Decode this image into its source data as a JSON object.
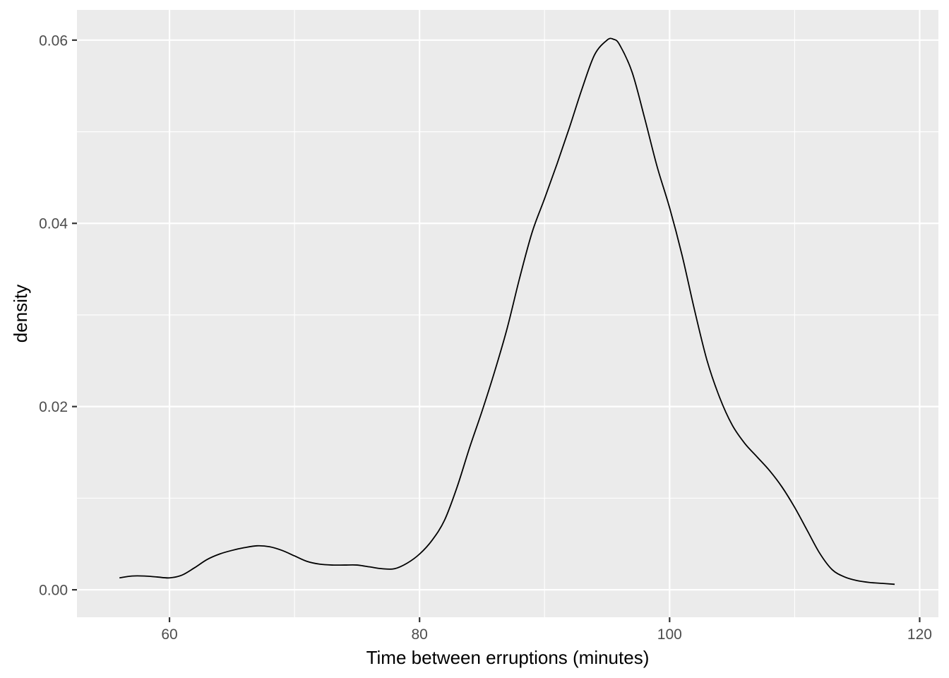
{
  "chart_data": {
    "type": "line",
    "geom": "density",
    "theme": "ggplot2 grey",
    "title": "",
    "xlabel": "Time between erruptions (minutes)",
    "ylabel": "density",
    "xlim": [
      52.6,
      121.5
    ],
    "ylim": [
      -0.003,
      0.0633
    ],
    "x_ticks": [
      60,
      80,
      100,
      120
    ],
    "x_tick_labels": [
      "60",
      "80",
      "100",
      "120"
    ],
    "x_minor_ticks": [
      70,
      90,
      110
    ],
    "y_ticks": [
      0,
      0.02,
      0.04,
      0.06
    ],
    "y_tick_labels": [
      "0.00",
      "0.02",
      "0.04",
      "0.06"
    ],
    "y_minor_ticks": [
      0.01,
      0.03,
      0.05
    ],
    "grid": true,
    "legend": "none",
    "colors": {
      "panel_background": "#ebebeb",
      "grid": "#ffffff",
      "line": "#000000",
      "tick_label": "#4d4d4d"
    },
    "series": [
      {
        "x": [
          56,
          57,
          58,
          59,
          60,
          61,
          62,
          63,
          64,
          65,
          66,
          67,
          68,
          69,
          70,
          71,
          72,
          73,
          74,
          75,
          76,
          77,
          78,
          79,
          80,
          81,
          82,
          83,
          84,
          85,
          86,
          87,
          88,
          89,
          90,
          91,
          92,
          93,
          94,
          95,
          95.5,
          96,
          97,
          98,
          99,
          100,
          101,
          102,
          103,
          104,
          105,
          106,
          107,
          108,
          109,
          110,
          111,
          112,
          113,
          114,
          115,
          116,
          117,
          118
        ],
        "y": [
          0.0013,
          0.0015,
          0.0015,
          0.0014,
          0.0013,
          0.0016,
          0.0024,
          0.0033,
          0.0039,
          0.0043,
          0.0046,
          0.0048,
          0.0047,
          0.0043,
          0.0037,
          0.0031,
          0.0028,
          0.0027,
          0.0027,
          0.0027,
          0.0025,
          0.0023,
          0.0023,
          0.0029,
          0.0039,
          0.0054,
          0.0076,
          0.0112,
          0.0155,
          0.0195,
          0.0238,
          0.0285,
          0.034,
          0.039,
          0.0427,
          0.0465,
          0.0505,
          0.0547,
          0.0584,
          0.06,
          0.0601,
          0.0595,
          0.0565,
          0.0515,
          0.0462,
          0.0417,
          0.0365,
          0.0305,
          0.025,
          0.021,
          0.018,
          0.016,
          0.0145,
          0.013,
          0.0112,
          0.009,
          0.0065,
          0.004,
          0.0022,
          0.0014,
          0.001,
          0.0008,
          0.0007,
          0.0006
        ]
      }
    ]
  }
}
